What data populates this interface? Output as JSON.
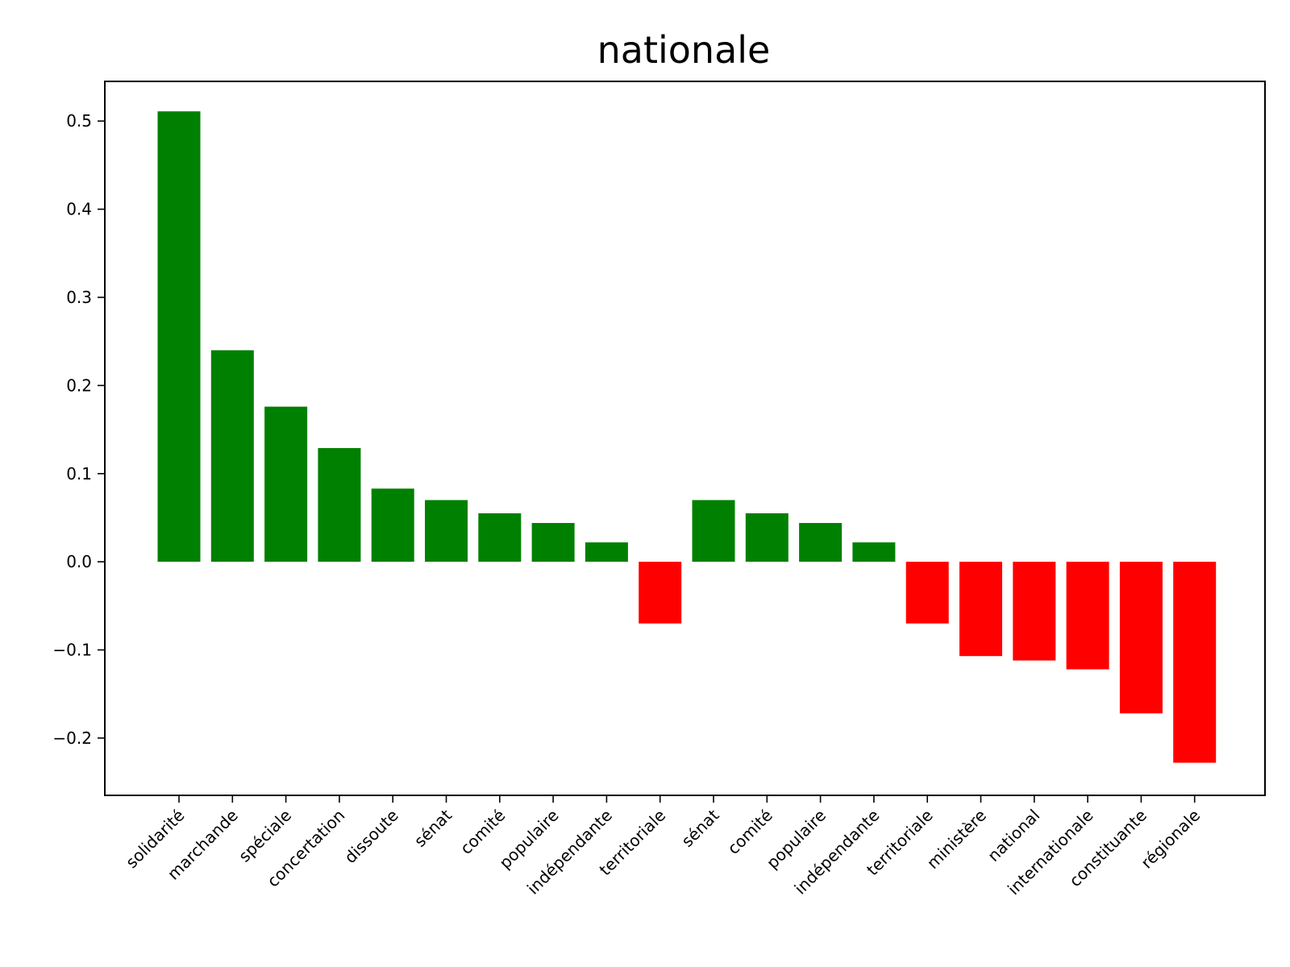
{
  "chart_data": {
    "type": "bar",
    "title": "nationale",
    "xlabel": "",
    "ylabel": "",
    "categories": [
      "solidarité",
      "marchande",
      "spéciale",
      "concertation",
      "dissoute",
      "sénat",
      "comité",
      "populaire",
      "indépendante",
      "territoriale",
      "sénat",
      "comité",
      "populaire",
      "indépendante",
      "territoriale",
      "ministère",
      "national",
      "internationale",
      "constituante",
      "régionale"
    ],
    "values": [
      0.511,
      0.24,
      0.176,
      0.129,
      0.083,
      0.07,
      0.055,
      0.044,
      0.022,
      -0.07,
      0.07,
      0.055,
      0.044,
      0.022,
      -0.07,
      -0.107,
      -0.112,
      -0.122,
      -0.172,
      -0.228
    ],
    "ylim": [
      -0.265,
      0.545
    ],
    "yticks": [
      -0.2,
      -0.1,
      0.0,
      0.1,
      0.2,
      0.3,
      0.4,
      0.5
    ],
    "ytick_labels": [
      "−0.2",
      "−0.1",
      "0.0",
      "0.1",
      "0.2",
      "0.3",
      "0.4",
      "0.5"
    ],
    "grid": false,
    "colors": {
      "positive": "#008000",
      "negative": "#ff0000"
    }
  }
}
